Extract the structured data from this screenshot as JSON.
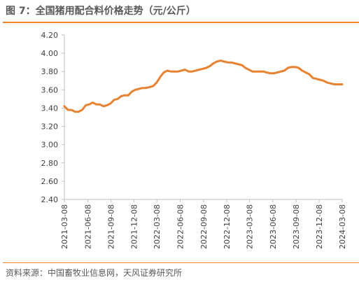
{
  "header": {
    "title": "图 7：全国猪用配合料价格走势（元/公斤）"
  },
  "footer": {
    "source": "资料来源：中国畜牧业信息网，天风证券研究所"
  },
  "colors": {
    "line": "#e8822e",
    "accent_rule": "#e8822e",
    "axis": "#bfbfbf",
    "text": "#404040"
  },
  "chart_data": {
    "type": "line",
    "title": "全国猪用配合料价格走势（元/公斤）",
    "xlabel": "",
    "ylabel": "",
    "ylim": [
      2.4,
      4.2
    ],
    "ytick_labels": [
      "2.40",
      "2.60",
      "2.80",
      "3.00",
      "3.20",
      "3.40",
      "3.60",
      "3.80",
      "4.00",
      "4.20"
    ],
    "xtick_labels": [
      "2021-03-08",
      "2021-06-08",
      "2021-09-08",
      "2021-12-08",
      "2022-03-08",
      "2022-06-08",
      "2022-09-08",
      "2022-12-08",
      "2023-03-08",
      "2023-06-08",
      "2023-09-08",
      "2023-12-08",
      "2024-03-08"
    ],
    "grid": false,
    "legend": "none",
    "series": [
      {
        "x": [
          "2021-03-08",
          "2021-03-22",
          "2021-04-05",
          "2021-04-19",
          "2021-05-03",
          "2021-05-17",
          "2021-05-31",
          "2021-06-14",
          "2021-06-28",
          "2021-07-12",
          "2021-07-26",
          "2021-08-09",
          "2021-08-23",
          "2021-09-06",
          "2021-09-20",
          "2021-10-04",
          "2021-10-18",
          "2021-11-01",
          "2021-11-15",
          "2021-11-29",
          "2021-12-13",
          "2021-12-27",
          "2022-01-10",
          "2022-01-24",
          "2022-02-07",
          "2022-02-21",
          "2022-03-07",
          "2022-03-21",
          "2022-04-04",
          "2022-04-18",
          "2022-05-02",
          "2022-05-16",
          "2022-05-30",
          "2022-06-13",
          "2022-06-27",
          "2022-07-11",
          "2022-07-25",
          "2022-08-08",
          "2022-08-22",
          "2022-09-05",
          "2022-09-19",
          "2022-10-03",
          "2022-10-17",
          "2022-10-31",
          "2022-11-14",
          "2022-11-28",
          "2022-12-12",
          "2022-12-26",
          "2023-01-09",
          "2023-01-23",
          "2023-02-06",
          "2023-02-20",
          "2023-03-06",
          "2023-03-20",
          "2023-04-03",
          "2023-04-17",
          "2023-05-01",
          "2023-05-15",
          "2023-05-29",
          "2023-06-12",
          "2023-06-26",
          "2023-07-10",
          "2023-07-24",
          "2023-08-07",
          "2023-08-21",
          "2023-09-04",
          "2023-09-18",
          "2023-10-02",
          "2023-10-16",
          "2023-10-30",
          "2023-11-13",
          "2023-11-27",
          "2023-12-11",
          "2023-12-25",
          "2024-01-08",
          "2024-01-22",
          "2024-02-05",
          "2024-02-19",
          "2024-03-04",
          "2024-03-08"
        ],
        "values": [
          3.42,
          3.38,
          3.38,
          3.36,
          3.36,
          3.38,
          3.43,
          3.44,
          3.46,
          3.44,
          3.44,
          3.42,
          3.43,
          3.45,
          3.49,
          3.5,
          3.53,
          3.54,
          3.54,
          3.58,
          3.6,
          3.61,
          3.62,
          3.62,
          3.63,
          3.64,
          3.68,
          3.74,
          3.79,
          3.81,
          3.8,
          3.8,
          3.8,
          3.81,
          3.82,
          3.8,
          3.8,
          3.81,
          3.82,
          3.83,
          3.84,
          3.86,
          3.89,
          3.91,
          3.92,
          3.91,
          3.9,
          3.9,
          3.89,
          3.88,
          3.87,
          3.84,
          3.82,
          3.8,
          3.8,
          3.8,
          3.8,
          3.79,
          3.78,
          3.78,
          3.79,
          3.8,
          3.81,
          3.84,
          3.85,
          3.85,
          3.84,
          3.81,
          3.79,
          3.77,
          3.73,
          3.72,
          3.71,
          3.7,
          3.68,
          3.67,
          3.66,
          3.66,
          3.66,
          3.66
        ]
      }
    ]
  }
}
